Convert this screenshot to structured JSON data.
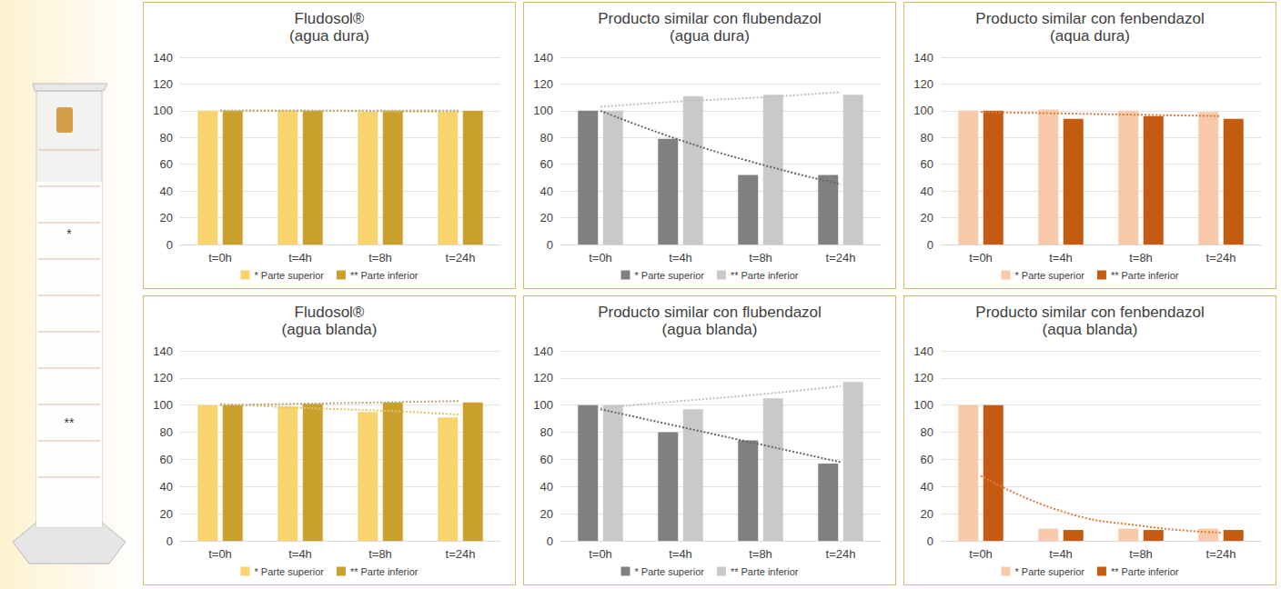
{
  "chart_data": [
    {
      "type": "bar",
      "title": "Fludosol®",
      "subtitle": "(agua dura)",
      "categories": [
        "t=0h",
        "t=4h",
        "t=8h",
        "t=24h"
      ],
      "series": [
        {
          "name": "* Parte superior",
          "color": "#f9d36b",
          "values": [
            100,
            100,
            99,
            99
          ]
        },
        {
          "name": "** Parte inferior",
          "color": "#c9a02c",
          "values": [
            100,
            100,
            100,
            100
          ]
        }
      ],
      "trendlines": [
        {
          "color": "#e3c463",
          "line_style": "dotted",
          "values": [
            100,
            100,
            99.5,
            99
          ]
        },
        {
          "color": "#b8a979",
          "line_style": "dotted",
          "values": [
            100,
            100,
            100,
            100
          ]
        }
      ],
      "ylim": [
        0,
        140
      ],
      "yticks": [
        0,
        20,
        40,
        60,
        80,
        100,
        120,
        140
      ],
      "grid": true,
      "legend": "bottom"
    },
    {
      "type": "bar",
      "title": "Producto similar con flubendazol",
      "subtitle": "(agua dura)",
      "categories": [
        "t=0h",
        "t=4h",
        "t=8h",
        "t=24h"
      ],
      "series": [
        {
          "name": "* Parte superior",
          "color": "#808080",
          "values": [
            100,
            79,
            52,
            52
          ]
        },
        {
          "name": "** Parte inferior",
          "color": "#c9c9c9",
          "values": [
            100,
            111,
            112,
            112
          ]
        }
      ],
      "trendlines": [
        {
          "color": "#666666",
          "line_style": "dotted",
          "values": [
            100,
            78,
            60,
            45
          ]
        },
        {
          "color": "#bfbfbf",
          "line_style": "dotted",
          "values": [
            103,
            107,
            110,
            114
          ]
        }
      ],
      "ylim": [
        0,
        140
      ],
      "yticks": [
        0,
        20,
        40,
        60,
        80,
        100,
        120,
        140
      ],
      "grid": true,
      "legend": "bottom"
    },
    {
      "type": "bar",
      "title": "Producto similar con fenbendazol",
      "subtitle": "(aqua dura)",
      "categories": [
        "t=0h",
        "t=4h",
        "t=8h",
        "t=24h"
      ],
      "series": [
        {
          "name": "* Parte superior",
          "color": "#f8caa9",
          "values": [
            100,
            101,
            100,
            99
          ]
        },
        {
          "name": "** Parte inferior",
          "color": "#c55a11",
          "values": [
            100,
            94,
            96,
            94
          ]
        }
      ],
      "trendlines": [
        {
          "color": "#e07b39",
          "line_style": "dotted",
          "values": [
            99,
            98,
            97,
            96
          ]
        }
      ],
      "ylim": [
        0,
        140
      ],
      "yticks": [
        0,
        20,
        40,
        60,
        80,
        100,
        120,
        140
      ],
      "grid": true,
      "legend": "bottom"
    },
    {
      "type": "bar",
      "title": "Fludosol®",
      "subtitle": "(agua blanda)",
      "categories": [
        "t=0h",
        "t=4h",
        "t=8h",
        "t=24h"
      ],
      "series": [
        {
          "name": "* Parte superior",
          "color": "#f9d36b",
          "values": [
            100,
            99,
            95,
            91
          ]
        },
        {
          "name": "** Parte inferior",
          "color": "#c9a02c",
          "values": [
            100,
            101,
            102,
            102
          ]
        }
      ],
      "trendlines": [
        {
          "color": "#e3c463",
          "line_style": "dotted",
          "values": [
            101,
            98,
            96,
            93
          ]
        },
        {
          "color": "#b8a979",
          "line_style": "dotted",
          "values": [
            100,
            101,
            102,
            103
          ]
        }
      ],
      "ylim": [
        0,
        140
      ],
      "yticks": [
        0,
        20,
        40,
        60,
        80,
        100,
        120,
        140
      ],
      "grid": true,
      "legend": "bottom"
    },
    {
      "type": "bar",
      "title": "Producto similar con flubendazol",
      "subtitle": "(agua blanda)",
      "categories": [
        "t=0h",
        "t=4h",
        "t=8h",
        "t=24h"
      ],
      "series": [
        {
          "name": "* Parte superior",
          "color": "#808080",
          "values": [
            100,
            80,
            74,
            57
          ]
        },
        {
          "name": "** Parte inferior",
          "color": "#c9c9c9",
          "values": [
            100,
            97,
            105,
            117
          ]
        }
      ],
      "trendlines": [
        {
          "color": "#666666",
          "line_style": "dotted",
          "values": [
            97,
            84,
            71,
            58
          ]
        },
        {
          "color": "#bfbfbf",
          "line_style": "dotted",
          "values": [
            98,
            103,
            108,
            114
          ]
        }
      ],
      "ylim": [
        0,
        140
      ],
      "yticks": [
        0,
        20,
        40,
        60,
        80,
        100,
        120,
        140
      ],
      "grid": true,
      "legend": "bottom"
    },
    {
      "type": "bar",
      "title": "Producto similar con fenbendazol",
      "subtitle": "(aqua blanda)",
      "categories": [
        "t=0h",
        "t=4h",
        "t=8h",
        "t=24h"
      ],
      "series": [
        {
          "name": "* Parte superior",
          "color": "#f8caa9",
          "values": [
            100,
            9,
            9,
            9
          ]
        },
        {
          "name": "** Parte inferior",
          "color": "#c55a11",
          "values": [
            100,
            8,
            8,
            8
          ]
        }
      ],
      "trendlines": [
        {
          "color": "#e07b39",
          "line_style": "dotted",
          "values": [
            48,
            22,
            11,
            6
          ]
        }
      ],
      "ylim": [
        0,
        140
      ],
      "yticks": [
        0,
        20,
        40,
        60,
        80,
        100,
        120,
        140
      ],
      "grid": true,
      "legend": "bottom"
    }
  ],
  "cylinder": {
    "marks": [
      "*",
      "**"
    ]
  }
}
